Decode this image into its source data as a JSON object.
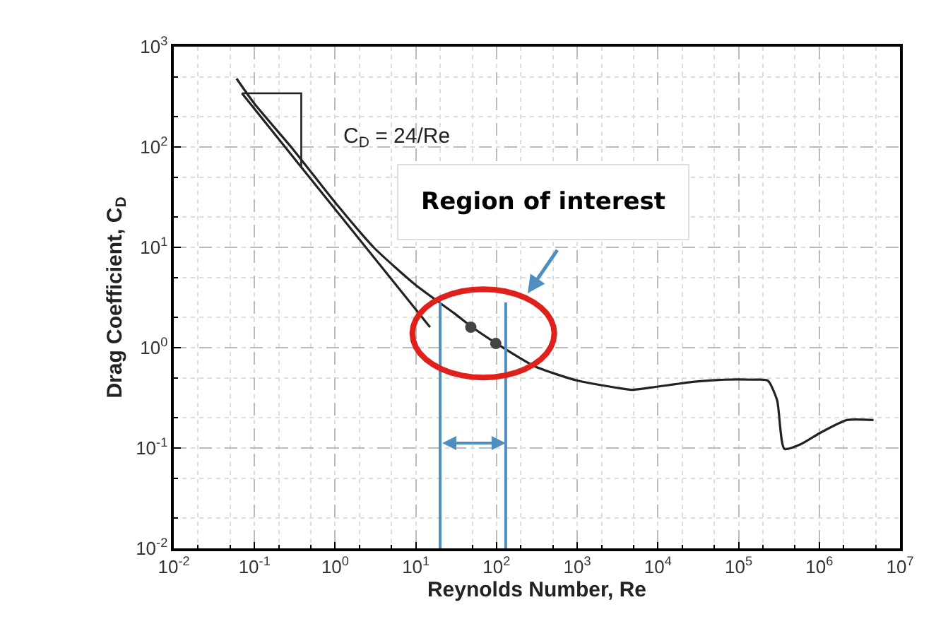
{
  "chart_data": {
    "type": "line",
    "xlabel": "Reynolds Number, Re",
    "ylabel": "Drag Coefficient, C$_{D}$",
    "log": "xy",
    "grid": true,
    "marker": "none",
    "line_style": "solid",
    "xlim": [
      0.01,
      10000000
    ],
    "ylim": [
      0.01,
      1000
    ],
    "xticks": [
      {
        "value": 0.01,
        "label": "10$^{-2}$"
      },
      {
        "value": 0.1,
        "label": "10$^{-1}$"
      },
      {
        "value": 1,
        "label": "10$^{0}$"
      },
      {
        "value": 10,
        "label": "10$^{1}$"
      },
      {
        "value": 100,
        "label": "10$^{2}$"
      },
      {
        "value": 1000,
        "label": "10$^{3}$"
      },
      {
        "value": 10000,
        "label": "10$^{4}$"
      },
      {
        "value": 100000,
        "label": "10$^{5}$"
      },
      {
        "value": 1000000,
        "label": "10$^{6}$"
      },
      {
        "value": 10000000,
        "label": "10$^{7}$"
      }
    ],
    "yticks": [
      {
        "value": 0.01,
        "label": "10$^{-2}$"
      },
      {
        "value": 0.1,
        "label": "10$^{-1}$"
      },
      {
        "value": 1,
        "label": "10$^{0}$"
      },
      {
        "value": 10,
        "label": "10$^{1}$"
      },
      {
        "value": 100,
        "label": "10$^{2}$"
      },
      {
        "value": 1000,
        "label": "10$^{3}$"
      }
    ],
    "series": [
      {
        "color": "#222222",
        "x": [
          0.06,
          0.1,
          0.3,
          1,
          3,
          10,
          30,
          50,
          100,
          300,
          1000,
          3000,
          4700,
          10000,
          30000,
          68000,
          150000,
          230000,
          300000,
          370000,
          600000,
          1000000,
          2200000,
          4700000
        ],
        "values": [
          480,
          270,
          95,
          28,
          10,
          4.2,
          2.2,
          1.6,
          1.1,
          0.65,
          0.47,
          0.4,
          0.38,
          0.41,
          0.46,
          0.48,
          0.48,
          0.47,
          0.3,
          0.098,
          0.11,
          0.14,
          0.19,
          0.19
        ]
      },
      {
        "color": "#222222",
        "x": [
          0.07,
          0.38,
          15
        ],
        "values": [
          343,
          63,
          1.6
        ]
      },
      {
        "type": "scatter",
        "marker": "circle",
        "color": "#444444",
        "x": [
          48,
          98
        ],
        "values": [
          1.6,
          1.1
        ]
      }
    ],
    "ref_lines": [
      {
        "axis": "x",
        "value": 20,
        "color": "#4f8fc0"
      },
      {
        "axis": "x",
        "value": 130,
        "color": "#4f8fc0"
      }
    ],
    "annotations": [
      "C$_{D}$ = 24/Re",
      "Region of interest"
    ]
  }
}
